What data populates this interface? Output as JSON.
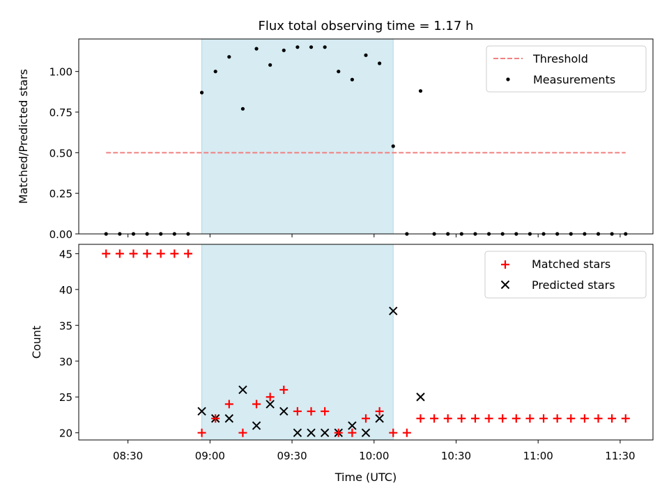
{
  "chart_data": [
    {
      "type": "scatter",
      "title": "Flux total observing time = 1.17 h",
      "xlabel": "",
      "ylabel": "Matched/Predicted stars",
      "xlim": [
        "08:12",
        "11:42"
      ],
      "ylim": [
        0,
        1.2
      ],
      "yticks": [
        0.0,
        0.25,
        0.5,
        0.75,
        1.0
      ],
      "ytick_labels": [
        "0.00",
        "0.25",
        "0.50",
        "0.75",
        "1.00"
      ],
      "shaded_span": [
        "08:57",
        "10:07"
      ],
      "legend_position": "top-right",
      "threshold": {
        "name": "Threshold",
        "color": "#f08080",
        "style": "dashed",
        "y": 0.5,
        "x_range": [
          "08:22",
          "11:32"
        ]
      },
      "series": [
        {
          "name": "Measurements",
          "marker": "dot",
          "color": "#000000",
          "x": [
            "08:22",
            "08:27",
            "08:32",
            "08:37",
            "08:42",
            "08:47",
            "08:52",
            "08:57",
            "09:02",
            "09:07",
            "09:12",
            "09:17",
            "09:22",
            "09:27",
            "09:32",
            "09:37",
            "09:42",
            "09:47",
            "09:52",
            "09:57",
            "10:02",
            "10:07",
            "10:12",
            "10:17",
            "10:22",
            "10:27",
            "10:32",
            "10:37",
            "10:42",
            "10:47",
            "10:52",
            "10:57",
            "11:02",
            "11:07",
            "11:12",
            "11:17",
            "11:22",
            "11:27",
            "11:32"
          ],
          "y": [
            0,
            0,
            0,
            0,
            0,
            0,
            0,
            0.87,
            1.0,
            1.09,
            0.77,
            1.14,
            1.04,
            1.13,
            1.15,
            1.15,
            1.15,
            1.0,
            0.95,
            1.1,
            1.05,
            0.54,
            0,
            0.88,
            0,
            0,
            0,
            0,
            0,
            0,
            0,
            0,
            0,
            0,
            0,
            0,
            0,
            0,
            0
          ]
        }
      ]
    },
    {
      "type": "scatter",
      "title": "",
      "xlabel": "Time (UTC)",
      "ylabel": "Count",
      "xlim": [
        "08:12",
        "11:42"
      ],
      "ylim": [
        19,
        46.3
      ],
      "yticks": [
        20,
        25,
        30,
        35,
        40,
        45
      ],
      "xticks": [
        "08:30",
        "09:00",
        "09:30",
        "10:00",
        "10:30",
        "11:00",
        "11:30"
      ],
      "shaded_span": [
        "08:57",
        "10:07"
      ],
      "legend_position": "top-right",
      "series": [
        {
          "name": "Matched stars",
          "marker": "plus",
          "color": "#ff0000",
          "x": [
            "08:22",
            "08:27",
            "08:32",
            "08:37",
            "08:42",
            "08:47",
            "08:52",
            "08:57",
            "09:02",
            "09:07",
            "09:12",
            "09:17",
            "09:22",
            "09:27",
            "09:32",
            "09:37",
            "09:42",
            "09:47",
            "09:52",
            "09:57",
            "10:02",
            "10:07",
            "10:12",
            "10:17",
            "10:22",
            "10:27",
            "10:32",
            "10:37",
            "10:42",
            "10:47",
            "10:52",
            "10:57",
            "11:02",
            "11:07",
            "11:12",
            "11:17",
            "11:22",
            "11:27",
            "11:32"
          ],
          "y": [
            45,
            45,
            45,
            45,
            45,
            45,
            45,
            20,
            22,
            24,
            20,
            24,
            25,
            26,
            23,
            23,
            23,
            20,
            20,
            22,
            23,
            20,
            20,
            22,
            22,
            22,
            22,
            22,
            22,
            22,
            22,
            22,
            22,
            22,
            22,
            22,
            22,
            22,
            22
          ]
        },
        {
          "name": "Predicted stars",
          "marker": "x",
          "color": "#000000",
          "x": [
            "08:57",
            "09:02",
            "09:07",
            "09:12",
            "09:17",
            "09:22",
            "09:27",
            "09:32",
            "09:37",
            "09:42",
            "09:47",
            "09:52",
            "09:57",
            "10:02",
            "10:07",
            "10:17"
          ],
          "y": [
            23,
            22,
            22,
            26,
            21,
            24,
            23,
            20,
            20,
            20,
            20,
            21,
            20,
            22,
            37,
            25
          ]
        }
      ]
    }
  ],
  "colors": {
    "shade": "#add8e6",
    "matched": "#ff0000",
    "predicted": "#000000",
    "threshold": "#f08080"
  }
}
